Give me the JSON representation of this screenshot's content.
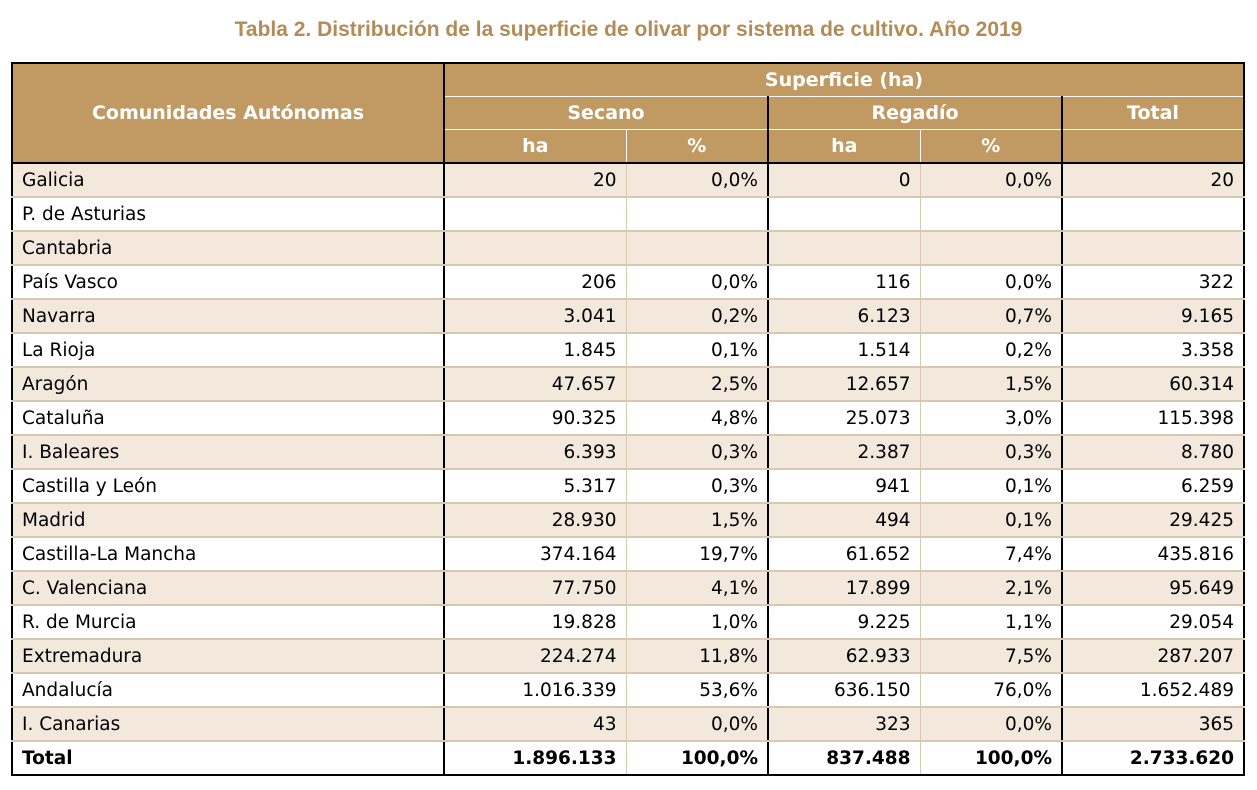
{
  "title": "Tabla 2. Distribución de la superficie de olivar por sistema de cultivo. Año 2019",
  "header": {
    "col_region": "Comunidades Autónomas",
    "group": "Superficie (ha)",
    "secano": "Secano",
    "regadio": "Regadío",
    "total": "Total",
    "ha": "ha",
    "pct": "%"
  },
  "rows": [
    {
      "name": "Galicia",
      "secano_ha": "20",
      "secano_pct": "0,0%",
      "regadio_ha": "0",
      "regadio_pct": "0,0%",
      "total": "20"
    },
    {
      "name": "P. de Asturias",
      "secano_ha": "",
      "secano_pct": "",
      "regadio_ha": "",
      "regadio_pct": "",
      "total": ""
    },
    {
      "name": "Cantabria",
      "secano_ha": "",
      "secano_pct": "",
      "regadio_ha": "",
      "regadio_pct": "",
      "total": ""
    },
    {
      "name": "País Vasco",
      "secano_ha": "206",
      "secano_pct": "0,0%",
      "regadio_ha": "116",
      "regadio_pct": "0,0%",
      "total": "322"
    },
    {
      "name": "Navarra",
      "secano_ha": "3.041",
      "secano_pct": "0,2%",
      "regadio_ha": "6.123",
      "regadio_pct": "0,7%",
      "total": "9.165"
    },
    {
      "name": "La Rioja",
      "secano_ha": "1.845",
      "secano_pct": "0,1%",
      "regadio_ha": "1.514",
      "regadio_pct": "0,2%",
      "total": "3.358"
    },
    {
      "name": "Aragón",
      "secano_ha": "47.657",
      "secano_pct": "2,5%",
      "regadio_ha": "12.657",
      "regadio_pct": "1,5%",
      "total": "60.314"
    },
    {
      "name": "Cataluña",
      "secano_ha": "90.325",
      "secano_pct": "4,8%",
      "regadio_ha": "25.073",
      "regadio_pct": "3,0%",
      "total": "115.398"
    },
    {
      "name": "I. Baleares",
      "secano_ha": "6.393",
      "secano_pct": "0,3%",
      "regadio_ha": "2.387",
      "regadio_pct": "0,3%",
      "total": "8.780"
    },
    {
      "name": "Castilla y León",
      "secano_ha": "5.317",
      "secano_pct": "0,3%",
      "regadio_ha": "941",
      "regadio_pct": "0,1%",
      "total": "6.259"
    },
    {
      "name": "Madrid",
      "secano_ha": "28.930",
      "secano_pct": "1,5%",
      "regadio_ha": "494",
      "regadio_pct": "0,1%",
      "total": "29.425"
    },
    {
      "name": "Castilla-La Mancha",
      "secano_ha": "374.164",
      "secano_pct": "19,7%",
      "regadio_ha": "61.652",
      "regadio_pct": "7,4%",
      "total": "435.816"
    },
    {
      "name": "C. Valenciana",
      "secano_ha": "77.750",
      "secano_pct": "4,1%",
      "regadio_ha": "17.899",
      "regadio_pct": "2,1%",
      "total": "95.649"
    },
    {
      "name": "R. de Murcia",
      "secano_ha": "19.828",
      "secano_pct": "1,0%",
      "regadio_ha": "9.225",
      "regadio_pct": "1,1%",
      "total": "29.054"
    },
    {
      "name": "Extremadura",
      "secano_ha": "224.274",
      "secano_pct": "11,8%",
      "regadio_ha": "62.933",
      "regadio_pct": "7,5%",
      "total": "287.207"
    },
    {
      "name": "Andalucía",
      "secano_ha": "1.016.339",
      "secano_pct": "53,6%",
      "regadio_ha": "636.150",
      "regadio_pct": "76,0%",
      "total": "1.652.489"
    },
    {
      "name": "I. Canarias",
      "secano_ha": "43",
      "secano_pct": "0,0%",
      "regadio_ha": "323",
      "regadio_pct": "0,0%",
      "total": "365"
    }
  ],
  "total_row": {
    "name": "Total",
    "secano_ha": "1.896.133",
    "secano_pct": "100,0%",
    "regadio_ha": "837.488",
    "regadio_pct": "100,0%",
    "total": "2.733.620"
  },
  "colors": {
    "header_bg": "#c09a62",
    "title": "#b38b57",
    "row_alt": "#f2e8dc"
  }
}
